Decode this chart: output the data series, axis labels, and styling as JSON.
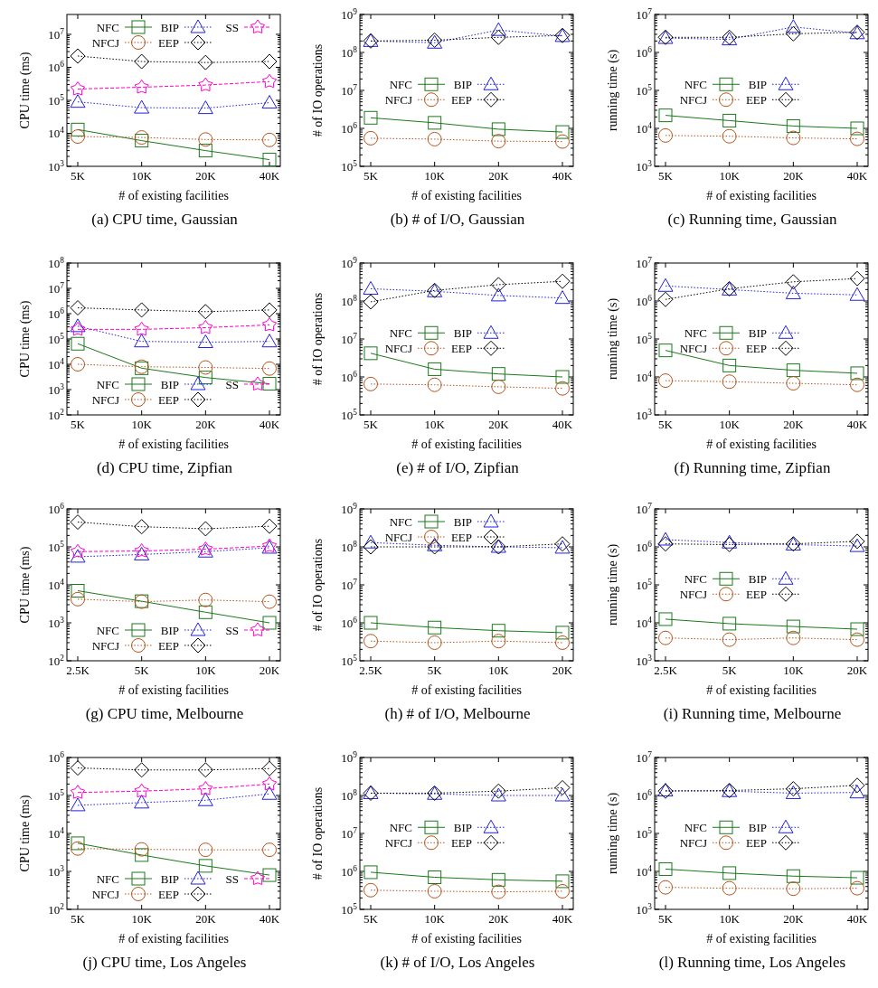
{
  "chart_data": [
    {
      "type": "line",
      "title": "(a) CPU time, Gaussian",
      "xlabel": "# of existing facilities",
      "ylabel": "CPU time (ms)",
      "categories": [
        "5K",
        "10K",
        "20K",
        "40K"
      ],
      "log": true,
      "legend": "top",
      "ylim": [
        1000,
        40000000
      ],
      "yticks": [
        {
          "value": 1000,
          "label": "10$^{3}$"
        },
        {
          "value": 10000,
          "label": "10$^{4}$"
        },
        {
          "value": 100000,
          "label": "10$^{5}$"
        },
        {
          "value": 1000000,
          "label": "10$^{6}$"
        },
        {
          "value": 10000000,
          "label": "10$^{7}$"
        }
      ],
      "series": [
        {
          "name": "NFC",
          "color": "#1a7a1a",
          "marker": "square",
          "line_style": "solid",
          "values": [
            13000,
            6000,
            3000,
            1600
          ]
        },
        {
          "name": "NFCJ",
          "color": "#b5541c",
          "marker": "circle",
          "line_style": "dotted",
          "values": [
            8000,
            7500,
            6500,
            6300
          ]
        },
        {
          "name": "BIP",
          "color": "#2020e0",
          "marker": "triangle",
          "line_style": "dotted",
          "values": [
            90000,
            60000,
            58000,
            85000
          ]
        },
        {
          "name": "EEP",
          "color": "#000000",
          "marker": "diamond",
          "line_style": "dotted",
          "values": [
            2200000,
            1500000,
            1400000,
            1500000
          ]
        },
        {
          "name": "SS",
          "color": "#ff00cc",
          "marker": "star",
          "line_style": "dashed",
          "values": [
            220000,
            250000,
            290000,
            370000
          ]
        }
      ]
    },
    {
      "type": "line",
      "title": "(b) # of I/O, Gaussian",
      "xlabel": "# of existing facilities",
      "ylabel": "# of IO operations",
      "categories": [
        "5K",
        "10K",
        "20K",
        "40K"
      ],
      "log": true,
      "legend": "center",
      "ylim": [
        100000,
        1000000000
      ],
      "yticks": [
        {
          "value": 100000,
          "label": "10$^{5}$"
        },
        {
          "value": 1000000,
          "label": "10$^{6}$"
        },
        {
          "value": 10000000,
          "label": "10$^{7}$"
        },
        {
          "value": 100000000,
          "label": "10$^{8}$"
        },
        {
          "value": 1000000000,
          "label": "10$^{9}$"
        }
      ],
      "series": [
        {
          "name": "NFC",
          "color": "#1a7a1a",
          "marker": "square",
          "line_style": "solid",
          "values": [
            1900000,
            1400000,
            950000,
            800000
          ]
        },
        {
          "name": "NFCJ",
          "color": "#b5541c",
          "marker": "circle",
          "line_style": "dotted",
          "values": [
            550000,
            520000,
            460000,
            450000
          ]
        },
        {
          "name": "BIP",
          "color": "#2020e0",
          "marker": "triangle",
          "line_style": "dotted",
          "values": [
            200000000,
            180000000,
            390000000,
            270000000
          ]
        },
        {
          "name": "EEP",
          "color": "#000000",
          "marker": "diamond",
          "line_style": "dotted",
          "values": [
            200000000,
            210000000,
            250000000,
            280000000
          ]
        }
      ]
    },
    {
      "type": "line",
      "title": "(c) Running time, Gaussian",
      "xlabel": "# of existing facilities",
      "ylabel": "running time (s)",
      "categories": [
        "5K",
        "10K",
        "20K",
        "40K"
      ],
      "log": true,
      "legend": "center",
      "ylim": [
        1000,
        10000000
      ],
      "yticks": [
        {
          "value": 1000,
          "label": "10$^{3}$"
        },
        {
          "value": 10000,
          "label": "10$^{4}$"
        },
        {
          "value": 100000,
          "label": "10$^{5}$"
        },
        {
          "value": 1000000,
          "label": "10$^{6}$"
        },
        {
          "value": 10000000,
          "label": "10$^{7}$"
        }
      ],
      "series": [
        {
          "name": "NFC",
          "color": "#1a7a1a",
          "marker": "square",
          "line_style": "solid",
          "values": [
            22000,
            16000,
            11500,
            10000
          ]
        },
        {
          "name": "NFCJ",
          "color": "#b5541c",
          "marker": "circle",
          "line_style": "dotted",
          "values": [
            6500,
            6200,
            5600,
            5300
          ]
        },
        {
          "name": "BIP",
          "color": "#2020e0",
          "marker": "triangle",
          "line_style": "dotted",
          "values": [
            2400000,
            2200000,
            4700000,
            3200000
          ]
        },
        {
          "name": "EEP",
          "color": "#000000",
          "marker": "diamond",
          "line_style": "dotted",
          "values": [
            2500000,
            2500000,
            3100000,
            3400000
          ]
        }
      ]
    },
    {
      "type": "line",
      "title": "(d) CPU time, Zipfian",
      "xlabel": "# of existing facilities",
      "ylabel": "CPU time (ms)",
      "categories": [
        "5K",
        "10K",
        "20K",
        "40K"
      ],
      "log": true,
      "legend": "bottom",
      "ylim": [
        100,
        100000000
      ],
      "yticks": [
        {
          "value": 100,
          "label": "10$^{2}$"
        },
        {
          "value": 1000,
          "label": "10$^{3}$"
        },
        {
          "value": 10000,
          "label": "10$^{4}$"
        },
        {
          "value": 100000,
          "label": "10$^{5}$"
        },
        {
          "value": 1000000,
          "label": "10$^{6}$"
        },
        {
          "value": 10000000,
          "label": "10$^{7}$"
        },
        {
          "value": 100000000,
          "label": "10$^{8}$"
        }
      ],
      "series": [
        {
          "name": "NFC",
          "color": "#1a7a1a",
          "marker": "square",
          "line_style": "solid",
          "values": [
            65000,
            7000,
            3000,
            1700
          ]
        },
        {
          "name": "NFCJ",
          "color": "#b5541c",
          "marker": "circle",
          "line_style": "dotted",
          "values": [
            10000,
            8000,
            7500,
            6800
          ]
        },
        {
          "name": "BIP",
          "color": "#2020e0",
          "marker": "triangle",
          "line_style": "dotted",
          "values": [
            320000,
            80000,
            75000,
            80000
          ]
        },
        {
          "name": "EEP",
          "color": "#000000",
          "marker": "diamond",
          "line_style": "dotted",
          "values": [
            1700000,
            1400000,
            1200000,
            1400000
          ]
        },
        {
          "name": "SS",
          "color": "#ff00cc",
          "marker": "star",
          "line_style": "dashed",
          "values": [
            240000,
            240000,
            280000,
            360000
          ]
        }
      ]
    },
    {
      "type": "line",
      "title": "(e) # of I/O, Zipfian",
      "xlabel": "# of existing facilities",
      "ylabel": "# of IO operations",
      "categories": [
        "5K",
        "10K",
        "20K",
        "40K"
      ],
      "log": true,
      "legend": "center",
      "ylim": [
        100000,
        1000000000
      ],
      "yticks": [
        {
          "value": 100000,
          "label": "10$^{5}$"
        },
        {
          "value": 1000000,
          "label": "10$^{6}$"
        },
        {
          "value": 10000000,
          "label": "10$^{7}$"
        },
        {
          "value": 100000000,
          "label": "10$^{8}$"
        },
        {
          "value": 1000000000,
          "label": "10$^{9}$"
        }
      ],
      "series": [
        {
          "name": "NFC",
          "color": "#1a7a1a",
          "marker": "square",
          "line_style": "solid",
          "values": [
            4200000,
            1600000,
            1200000,
            1000000
          ]
        },
        {
          "name": "NFCJ",
          "color": "#b5541c",
          "marker": "circle",
          "line_style": "dotted",
          "values": [
            650000,
            620000,
            550000,
            500000
          ]
        },
        {
          "name": "BIP",
          "color": "#2020e0",
          "marker": "triangle",
          "line_style": "dotted",
          "values": [
            210000000,
            180000000,
            140000000,
            120000000
          ]
        },
        {
          "name": "EEP",
          "color": "#000000",
          "marker": "diamond",
          "line_style": "dotted",
          "values": [
            95000000,
            190000000,
            270000000,
            330000000
          ]
        }
      ]
    },
    {
      "type": "line",
      "title": "(f) Running time, Zipfian",
      "xlabel": "# of existing facilities",
      "ylabel": "running time (s)",
      "categories": [
        "5K",
        "10K",
        "20K",
        "40K"
      ],
      "log": true,
      "legend": "center",
      "ylim": [
        1000,
        10000000
      ],
      "yticks": [
        {
          "value": 1000,
          "label": "10$^{3}$"
        },
        {
          "value": 10000,
          "label": "10$^{4}$"
        },
        {
          "value": 100000,
          "label": "10$^{5}$"
        },
        {
          "value": 1000000,
          "label": "10$^{6}$"
        },
        {
          "value": 10000000,
          "label": "10$^{7}$"
        }
      ],
      "series": [
        {
          "name": "NFC",
          "color": "#1a7a1a",
          "marker": "square",
          "line_style": "solid",
          "values": [
            50000,
            20000,
            15000,
            12500
          ]
        },
        {
          "name": "NFCJ",
          "color": "#b5541c",
          "marker": "circle",
          "line_style": "dotted",
          "values": [
            8000,
            7500,
            6800,
            6200
          ]
        },
        {
          "name": "BIP",
          "color": "#2020e0",
          "marker": "triangle",
          "line_style": "dotted",
          "values": [
            2500000,
            2000000,
            1600000,
            1450000
          ]
        },
        {
          "name": "EEP",
          "color": "#000000",
          "marker": "diamond",
          "line_style": "dotted",
          "values": [
            1100000,
            2100000,
            3200000,
            3900000
          ]
        }
      ]
    },
    {
      "type": "line",
      "title": "(g) CPU time, Melbourne",
      "xlabel": "# of existing facilities",
      "ylabel": "CPU time (ms)",
      "categories": [
        "2.5K",
        "5K",
        "10K",
        "20K"
      ],
      "log": true,
      "legend": "bottom",
      "ylim": [
        100,
        1000000
      ],
      "yticks": [
        {
          "value": 100,
          "label": "10$^{2}$"
        },
        {
          "value": 1000,
          "label": "10$^{3}$"
        },
        {
          "value": 10000,
          "label": "10$^{4}$"
        },
        {
          "value": 100000,
          "label": "10$^{5}$"
        },
        {
          "value": 1000000,
          "label": "10$^{6}$"
        }
      ],
      "series": [
        {
          "name": "NFC",
          "color": "#1a7a1a",
          "marker": "square",
          "line_style": "solid",
          "values": [
            7000,
            3700,
            1900,
            1000
          ]
        },
        {
          "name": "NFCJ",
          "color": "#b5541c",
          "marker": "circle",
          "line_style": "dotted",
          "values": [
            4200,
            3600,
            4000,
            3600
          ]
        },
        {
          "name": "BIP",
          "color": "#2020e0",
          "marker": "triangle",
          "line_style": "dotted",
          "values": [
            55000,
            63000,
            75000,
            95000
          ]
        },
        {
          "name": "EEP",
          "color": "#000000",
          "marker": "diamond",
          "line_style": "dotted",
          "values": [
            450000,
            340000,
            300000,
            350000
          ]
        },
        {
          "name": "SS",
          "color": "#ff00cc",
          "marker": "star",
          "line_style": "dashed",
          "values": [
            75000,
            78000,
            87000,
            105000
          ]
        }
      ]
    },
    {
      "type": "line",
      "title": "(h) # of I/O, Melbourne",
      "xlabel": "# of existing facilities",
      "ylabel": "# of IO operations",
      "categories": [
        "2.5K",
        "5K",
        "10K",
        "20K"
      ],
      "log": true,
      "legend": "top",
      "ylim": [
        100000,
        1000000000
      ],
      "yticks": [
        {
          "value": 100000,
          "label": "10$^{5}$"
        },
        {
          "value": 1000000,
          "label": "10$^{6}$"
        },
        {
          "value": 10000000,
          "label": "10$^{7}$"
        },
        {
          "value": 100000000,
          "label": "10$^{8}$"
        },
        {
          "value": 1000000000,
          "label": "10$^{9}$"
        }
      ],
      "series": [
        {
          "name": "NFC",
          "color": "#1a7a1a",
          "marker": "square",
          "line_style": "solid",
          "values": [
            1000000,
            750000,
            620000,
            550000
          ]
        },
        {
          "name": "NFCJ",
          "color": "#b5541c",
          "marker": "circle",
          "line_style": "dotted",
          "values": [
            330000,
            300000,
            330000,
            300000
          ]
        },
        {
          "name": "BIP",
          "color": "#2020e0",
          "marker": "triangle",
          "line_style": "dotted",
          "values": [
            130000000,
            110000000,
            100000000,
            95000000
          ]
        },
        {
          "name": "EEP",
          "color": "#000000",
          "marker": "diamond",
          "line_style": "dotted",
          "values": [
            100000000,
            100000000,
            100000000,
            120000000
          ]
        }
      ]
    },
    {
      "type": "line",
      "title": "(i) Running time, Melbourne",
      "xlabel": "# of existing facilities",
      "ylabel": "running time (s)",
      "categories": [
        "2.5K",
        "5K",
        "10K",
        "20K"
      ],
      "log": true,
      "legend": "center",
      "ylim": [
        1000,
        10000000
      ],
      "yticks": [
        {
          "value": 1000,
          "label": "10$^{3}$"
        },
        {
          "value": 10000,
          "label": "10$^{4}$"
        },
        {
          "value": 100000,
          "label": "10$^{5}$"
        },
        {
          "value": 1000000,
          "label": "10$^{6}$"
        },
        {
          "value": 10000000,
          "label": "10$^{7}$"
        }
      ],
      "series": [
        {
          "name": "NFC",
          "color": "#1a7a1a",
          "marker": "square",
          "line_style": "solid",
          "values": [
            12500,
            9500,
            8000,
            6800
          ]
        },
        {
          "name": "NFCJ",
          "color": "#b5541c",
          "marker": "circle",
          "line_style": "dotted",
          "values": [
            4000,
            3600,
            4000,
            3600
          ]
        },
        {
          "name": "BIP",
          "color": "#2020e0",
          "marker": "triangle",
          "line_style": "dotted",
          "values": [
            1550000,
            1300000,
            1150000,
            1050000
          ]
        },
        {
          "name": "EEP",
          "color": "#000000",
          "marker": "diamond",
          "line_style": "dotted",
          "values": [
            1200000,
            1150000,
            1200000,
            1400000
          ]
        }
      ]
    },
    {
      "type": "line",
      "title": "(j) CPU time, Los Angeles",
      "xlabel": "# of existing facilities",
      "ylabel": "CPU time (ms)",
      "categories": [
        "5K",
        "10K",
        "20K",
        "40K"
      ],
      "log": true,
      "legend": "bottom",
      "ylim": [
        100,
        1000000
      ],
      "yticks": [
        {
          "value": 100,
          "label": "10$^{2}$"
        },
        {
          "value": 1000,
          "label": "10$^{3}$"
        },
        {
          "value": 10000,
          "label": "10$^{4}$"
        },
        {
          "value": 100000,
          "label": "10$^{5}$"
        },
        {
          "value": 1000000,
          "label": "10$^{6}$"
        }
      ],
      "series": [
        {
          "name": "NFC",
          "color": "#1a7a1a",
          "marker": "square",
          "line_style": "solid",
          "values": [
            5500,
            2700,
            1400,
            800
          ]
        },
        {
          "name": "NFCJ",
          "color": "#b5541c",
          "marker": "circle",
          "line_style": "dotted",
          "values": [
            4000,
            3800,
            3700,
            3700
          ]
        },
        {
          "name": "BIP",
          "color": "#2020e0",
          "marker": "triangle",
          "line_style": "dotted",
          "values": [
            55000,
            65000,
            75000,
            110000
          ]
        },
        {
          "name": "EEP",
          "color": "#000000",
          "marker": "diamond",
          "line_style": "dotted",
          "values": [
            530000,
            470000,
            470000,
            510000
          ]
        },
        {
          "name": "SS",
          "color": "#ff00cc",
          "marker": "star",
          "line_style": "dashed",
          "values": [
            120000,
            130000,
            150000,
            200000
          ]
        }
      ]
    },
    {
      "type": "line",
      "title": "(k) # of I/O, Los Angeles",
      "xlabel": "# of existing facilities",
      "ylabel": "# of IO operations",
      "categories": [
        "5K",
        "10K",
        "20K",
        "40K"
      ],
      "log": true,
      "legend": "center",
      "ylim": [
        100000,
        1000000000
      ],
      "yticks": [
        {
          "value": 100000,
          "label": "10$^{5}$"
        },
        {
          "value": 1000000,
          "label": "10$^{6}$"
        },
        {
          "value": 10000000,
          "label": "10$^{7}$"
        },
        {
          "value": 100000000,
          "label": "10$^{8}$"
        },
        {
          "value": 1000000000,
          "label": "10$^{9}$"
        }
      ],
      "series": [
        {
          "name": "NFC",
          "color": "#1a7a1a",
          "marker": "square",
          "line_style": "solid",
          "values": [
            950000,
            700000,
            600000,
            550000
          ]
        },
        {
          "name": "NFCJ",
          "color": "#b5541c",
          "marker": "circle",
          "line_style": "dotted",
          "values": [
            320000,
            300000,
            290000,
            300000
          ]
        },
        {
          "name": "BIP",
          "color": "#2020e0",
          "marker": "triangle",
          "line_style": "dotted",
          "values": [
            115000000,
            110000000,
            100000000,
            100000000
          ]
        },
        {
          "name": "EEP",
          "color": "#000000",
          "marker": "diamond",
          "line_style": "dotted",
          "values": [
            115000000,
            115000000,
            130000000,
            160000000
          ]
        }
      ]
    },
    {
      "type": "line",
      "title": "(l) Running time, Los Angeles",
      "xlabel": "# of existing facilities",
      "ylabel": "running time (s)",
      "categories": [
        "5K",
        "10K",
        "20K",
        "40K"
      ],
      "log": true,
      "legend": "center",
      "ylim": [
        1000,
        10000000
      ],
      "yticks": [
        {
          "value": 1000,
          "label": "10$^{3}$"
        },
        {
          "value": 10000,
          "label": "10$^{4}$"
        },
        {
          "value": 100000,
          "label": "10$^{5}$"
        },
        {
          "value": 1000000,
          "label": "10$^{6}$"
        },
        {
          "value": 10000000,
          "label": "10$^{7}$"
        }
      ],
      "series": [
        {
          "name": "NFC",
          "color": "#1a7a1a",
          "marker": "square",
          "line_style": "solid",
          "values": [
            11500,
            9000,
            7500,
            6800
          ]
        },
        {
          "name": "NFCJ",
          "color": "#b5541c",
          "marker": "circle",
          "line_style": "dotted",
          "values": [
            3800,
            3600,
            3500,
            3600
          ]
        },
        {
          "name": "BIP",
          "color": "#2020e0",
          "marker": "triangle",
          "line_style": "dotted",
          "values": [
            1350000,
            1300000,
            1150000,
            1200000
          ]
        },
        {
          "name": "EEP",
          "color": "#000000",
          "marker": "diamond",
          "line_style": "dotted",
          "values": [
            1300000,
            1350000,
            1500000,
            1850000
          ]
        }
      ]
    }
  ]
}
